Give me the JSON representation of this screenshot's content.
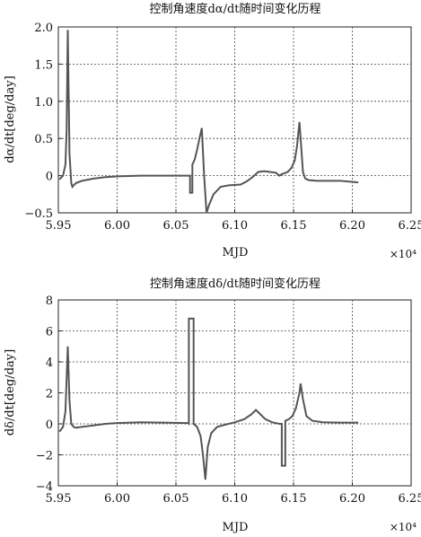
{
  "chart_data": [
    {
      "type": "line",
      "title": "控制角速度dα/dt随时间变化历程",
      "xlabel": "MJD",
      "ylabel": "dα/dt[deg/day]",
      "x_multiplier": "×10⁴",
      "xlim": [
        5.95,
        6.25
      ],
      "ylim": [
        -0.5,
        2.0
      ],
      "xticks": [
        "5.95",
        "6.00",
        "6.05",
        "6.10",
        "6.15",
        "6.20",
        "6.25"
      ],
      "yticks": [
        "2.0",
        "1.5",
        "1.0",
        "0.5",
        "0",
        "−0.5"
      ],
      "grid": true,
      "series": [
        {
          "x": [
            5.951,
            5.954,
            5.956,
            5.957,
            5.958,
            5.9595,
            5.961,
            5.962,
            5.963,
            5.965,
            5.97,
            5.98,
            5.99,
            6.0,
            6.02,
            6.04,
            6.06,
            6.062,
            6.062,
            6.064,
            6.064,
            6.066,
            6.068,
            6.07,
            6.072,
            6.074,
            6.076,
            6.078,
            6.082,
            6.088,
            6.095,
            6.105,
            6.11,
            6.115,
            6.12,
            6.125,
            6.13,
            6.135,
            6.138,
            6.14,
            6.142,
            6.145,
            6.148,
            6.151,
            6.153,
            6.155,
            6.156,
            6.158,
            6.16,
            6.163,
            6.17,
            6.19,
            6.205
          ],
          "y": [
            -0.05,
            0.0,
            0.15,
            0.6,
            1.96,
            0.3,
            -0.1,
            -0.15,
            -0.13,
            -0.1,
            -0.07,
            -0.04,
            -0.02,
            -0.01,
            0.0,
            0.0,
            0.0,
            0.0,
            -0.23,
            -0.23,
            0.15,
            0.22,
            0.35,
            0.5,
            0.64,
            0.0,
            -0.5,
            -0.4,
            -0.25,
            -0.15,
            -0.13,
            -0.12,
            -0.08,
            -0.02,
            0.05,
            0.06,
            0.05,
            0.04,
            0.0,
            0.02,
            0.03,
            0.05,
            0.1,
            0.2,
            0.4,
            0.72,
            0.5,
            0.05,
            -0.04,
            -0.06,
            -0.07,
            -0.07,
            -0.09
          ]
        }
      ]
    },
    {
      "type": "line",
      "title": "控制角速度dδ/dt随时间变化历程",
      "xlabel": "MJD",
      "ylabel": "dδ/dt[deg/day]",
      "x_multiplier": "×10⁴",
      "xlim": [
        5.95,
        6.25
      ],
      "ylim": [
        -4,
        8
      ],
      "xticks": [
        "5.95",
        "6.00",
        "6.05",
        "6.10",
        "6.15",
        "6.20",
        "6.25"
      ],
      "yticks": [
        "8",
        "6",
        "4",
        "2",
        "0",
        "−2",
        "−4"
      ],
      "grid": true,
      "series": [
        {
          "x": [
            5.951,
            5.954,
            5.956,
            5.958,
            5.9595,
            5.961,
            5.963,
            5.965,
            5.97,
            5.98,
            5.99,
            6.0,
            6.02,
            6.04,
            6.06,
            6.061,
            6.061,
            6.065,
            6.065,
            6.068,
            6.071,
            6.073,
            6.075,
            6.077,
            6.08,
            6.085,
            6.092,
            6.1,
            6.108,
            6.114,
            6.118,
            6.122,
            6.126,
            6.132,
            6.138,
            6.14,
            6.14,
            6.143,
            6.143,
            6.146,
            6.149,
            6.152,
            6.155,
            6.156,
            6.158,
            6.161,
            6.166,
            6.175,
            6.19,
            6.205
          ],
          "y": [
            -0.5,
            -0.2,
            0.8,
            5.0,
            1.5,
            0.0,
            -0.2,
            -0.25,
            -0.2,
            -0.1,
            0.0,
            0.05,
            0.1,
            0.08,
            0.05,
            0.0,
            6.8,
            6.8,
            0.0,
            -0.2,
            -0.8,
            -2.0,
            -3.6,
            -1.5,
            -0.6,
            -0.2,
            -0.05,
            0.1,
            0.3,
            0.6,
            0.9,
            0.6,
            0.3,
            0.1,
            0.0,
            0.0,
            -2.7,
            -2.7,
            0.2,
            0.3,
            0.5,
            1.0,
            2.0,
            2.6,
            1.6,
            0.5,
            0.2,
            0.1,
            0.08,
            0.08
          ]
        }
      ]
    }
  ]
}
